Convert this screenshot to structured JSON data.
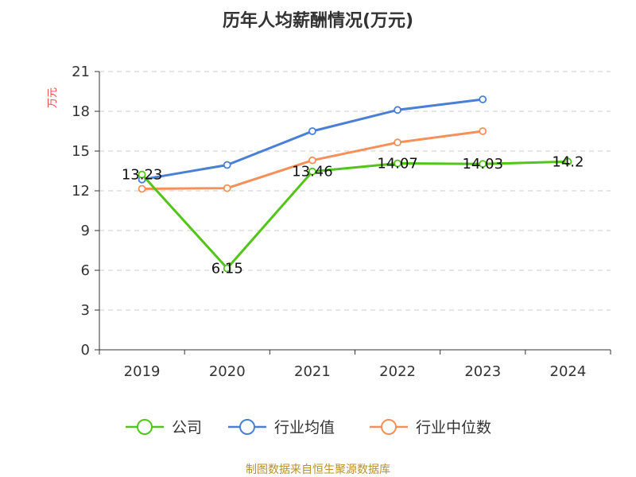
{
  "chart_data": {
    "type": "line",
    "title": "历年人均薪酬情况(万元)",
    "ylabel": "万元",
    "xlabel": "",
    "categories": [
      "2019",
      "2020",
      "2021",
      "2022",
      "2023",
      "2024"
    ],
    "ylim": [
      0,
      21
    ],
    "yticks": [
      0,
      3,
      6,
      9,
      12,
      15,
      18,
      21
    ],
    "grid": true,
    "legend_position": "bottom",
    "series": [
      {
        "name": "公司",
        "color": "#52c41a",
        "values": [
          13.23,
          6.15,
          13.46,
          14.07,
          14.03,
          14.2
        ],
        "labels": [
          "13.23",
          "6.15",
          "13.46",
          "14.07",
          "14.03",
          "14.2"
        ]
      },
      {
        "name": "行业均值",
        "color": "#4a7fd6",
        "values": [
          12.85,
          13.95,
          16.5,
          18.1,
          18.9,
          null
        ]
      },
      {
        "name": "行业中位数",
        "color": "#f5905a",
        "values": [
          12.15,
          12.2,
          14.3,
          15.65,
          16.5,
          null
        ]
      }
    ]
  },
  "source": "制图数据来自恒生聚源数据库"
}
